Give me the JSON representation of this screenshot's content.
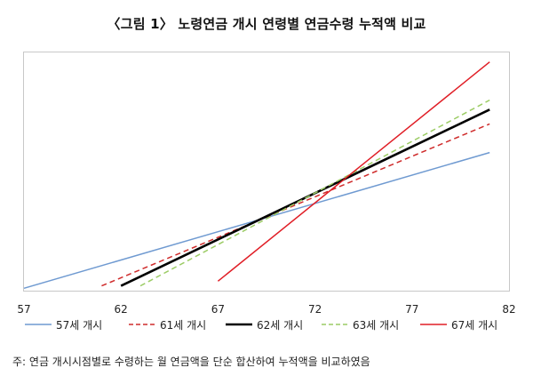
{
  "title": "〈그림 1〉 노령연금 개시 연령별 연금수령 누적액 비교",
  "note": "주: 연금 개시시점별로 수령하는 월 연금액을 단순 합산하여 누적액을 비교하였음",
  "chart_data": {
    "type": "line",
    "title": "〈그림 1〉 노령연금 개시 연령별 연금수령 누적액 비교",
    "xlabel": "",
    "ylabel": "",
    "x_ticks": [
      57,
      62,
      67,
      72,
      77,
      82
    ],
    "xlim": [
      57,
      82
    ],
    "ylim": [
      0,
      100
    ],
    "grid": false,
    "legend_position": "bottom",
    "series": [
      {
        "name": "57세 개시",
        "color": "#6f9ad1",
        "dash": "solid",
        "width": 1.5,
        "x": [
          57,
          81
        ],
        "y": [
          1,
          58
        ]
      },
      {
        "name": "61세 개시",
        "color": "#cf2b2b",
        "dash": "dashed",
        "width": 1.5,
        "x": [
          61,
          81
        ],
        "y": [
          2,
          70
        ]
      },
      {
        "name": "62세 개시",
        "color": "#000000",
        "dash": "solid",
        "width": 2.6,
        "x": [
          62,
          81
        ],
        "y": [
          2,
          76
        ]
      },
      {
        "name": "63세 개시",
        "color": "#9ccc65",
        "dash": "dashed",
        "width": 1.5,
        "x": [
          63,
          81
        ],
        "y": [
          2,
          80
        ]
      },
      {
        "name": "67세 개시",
        "color": "#e01e26",
        "dash": "solid",
        "width": 1.5,
        "x": [
          67,
          81
        ],
        "y": [
          4,
          96
        ]
      }
    ]
  }
}
